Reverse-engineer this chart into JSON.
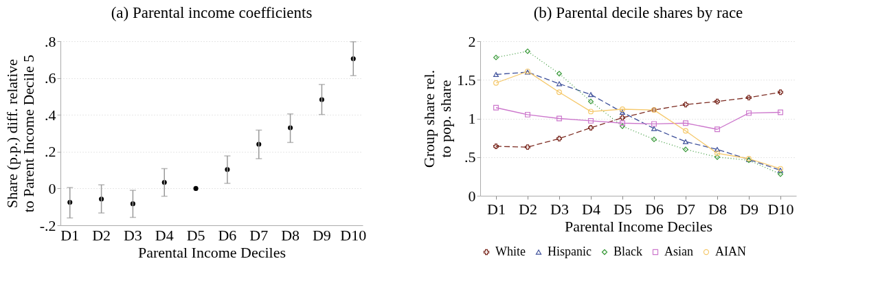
{
  "chart_data": [
    {
      "type": "scatter",
      "title": "(a) Parental income coefficients",
      "xlabel": "Parental Income Deciles",
      "ylabel": "Share (p.p.) diff. relative to Parent Income Decile 5",
      "categories": [
        "D1",
        "D2",
        "D3",
        "D4",
        "D5",
        "D6",
        "D7",
        "D8",
        "D9",
        "D10"
      ],
      "values": [
        -0.075,
        -0.057,
        -0.083,
        0.033,
        0,
        0.103,
        0.24,
        0.33,
        0.483,
        0.705
      ],
      "errors": [
        [
          -0.16,
          0.005
        ],
        [
          -0.133,
          0.02
        ],
        [
          -0.157,
          -0.01
        ],
        [
          -0.042,
          0.108
        ],
        null,
        [
          0.028,
          0.177
        ],
        [
          0.162,
          0.317
        ],
        [
          0.25,
          0.405
        ],
        [
          0.402,
          0.565
        ],
        [
          0.613,
          0.797
        ]
      ],
      "color": "#000000",
      "marker": "circle",
      "ylim": [
        -0.2,
        0.8
      ],
      "yticks": [
        {
          "value": -0.2,
          "label": "-.2"
        },
        0,
        {
          "value": 0.2,
          "label": ".2"
        },
        {
          "value": 0.4,
          "label": ".4"
        },
        {
          "value": 0.6,
          "label": ".6"
        },
        {
          "value": 0.8,
          "label": ".8"
        }
      ],
      "grid": "y"
    },
    {
      "type": "line",
      "title": "(b) Parental decile shares by race",
      "xlabel": "Parental Income Deciles",
      "ylabel": "Group share rel. to pop. share",
      "categories": [
        "D1",
        "D2",
        "D3",
        "D4",
        "D5",
        "D6",
        "D7",
        "D8",
        "D9",
        "D10"
      ],
      "series": [
        {
          "name": "White",
          "color": "#7b2a20",
          "marker": "cross",
          "line_style": "dashed",
          "values": [
            0.64,
            0.63,
            0.74,
            0.88,
            1.01,
            1.11,
            1.18,
            1.22,
            1.27,
            1.34
          ]
        },
        {
          "name": "Hispanic",
          "color": "#3d4f9a",
          "marker": "triangle",
          "line_style": "dashed",
          "values": [
            1.57,
            1.6,
            1.45,
            1.31,
            1.08,
            0.87,
            0.7,
            0.6,
            0.47,
            0.33
          ]
        },
        {
          "name": "Black",
          "color": "#3a9a3a",
          "marker": "diamond",
          "line_style": "dotted",
          "values": [
            1.79,
            1.87,
            1.58,
            1.22,
            0.9,
            0.73,
            0.6,
            0.5,
            0.46,
            0.28
          ]
        },
        {
          "name": "Asian",
          "color": "#cc77cc",
          "marker": "square",
          "line_style": "solid",
          "values": [
            1.14,
            1.05,
            1.0,
            0.97,
            0.94,
            0.93,
            0.94,
            0.86,
            1.07,
            1.08
          ]
        },
        {
          "name": "AIAN",
          "color": "#f5c86a",
          "marker": "circle",
          "line_style": "solid",
          "values": [
            1.46,
            1.61,
            1.34,
            1.09,
            1.12,
            1.11,
            0.84,
            0.55,
            0.48,
            0.35
          ]
        }
      ],
      "ylim": [
        0,
        2
      ],
      "yticks": [
        0,
        {
          "value": 0.5,
          "label": ".5"
        },
        1,
        1.5,
        2
      ],
      "grid": "y",
      "legend": "bottom"
    }
  ]
}
